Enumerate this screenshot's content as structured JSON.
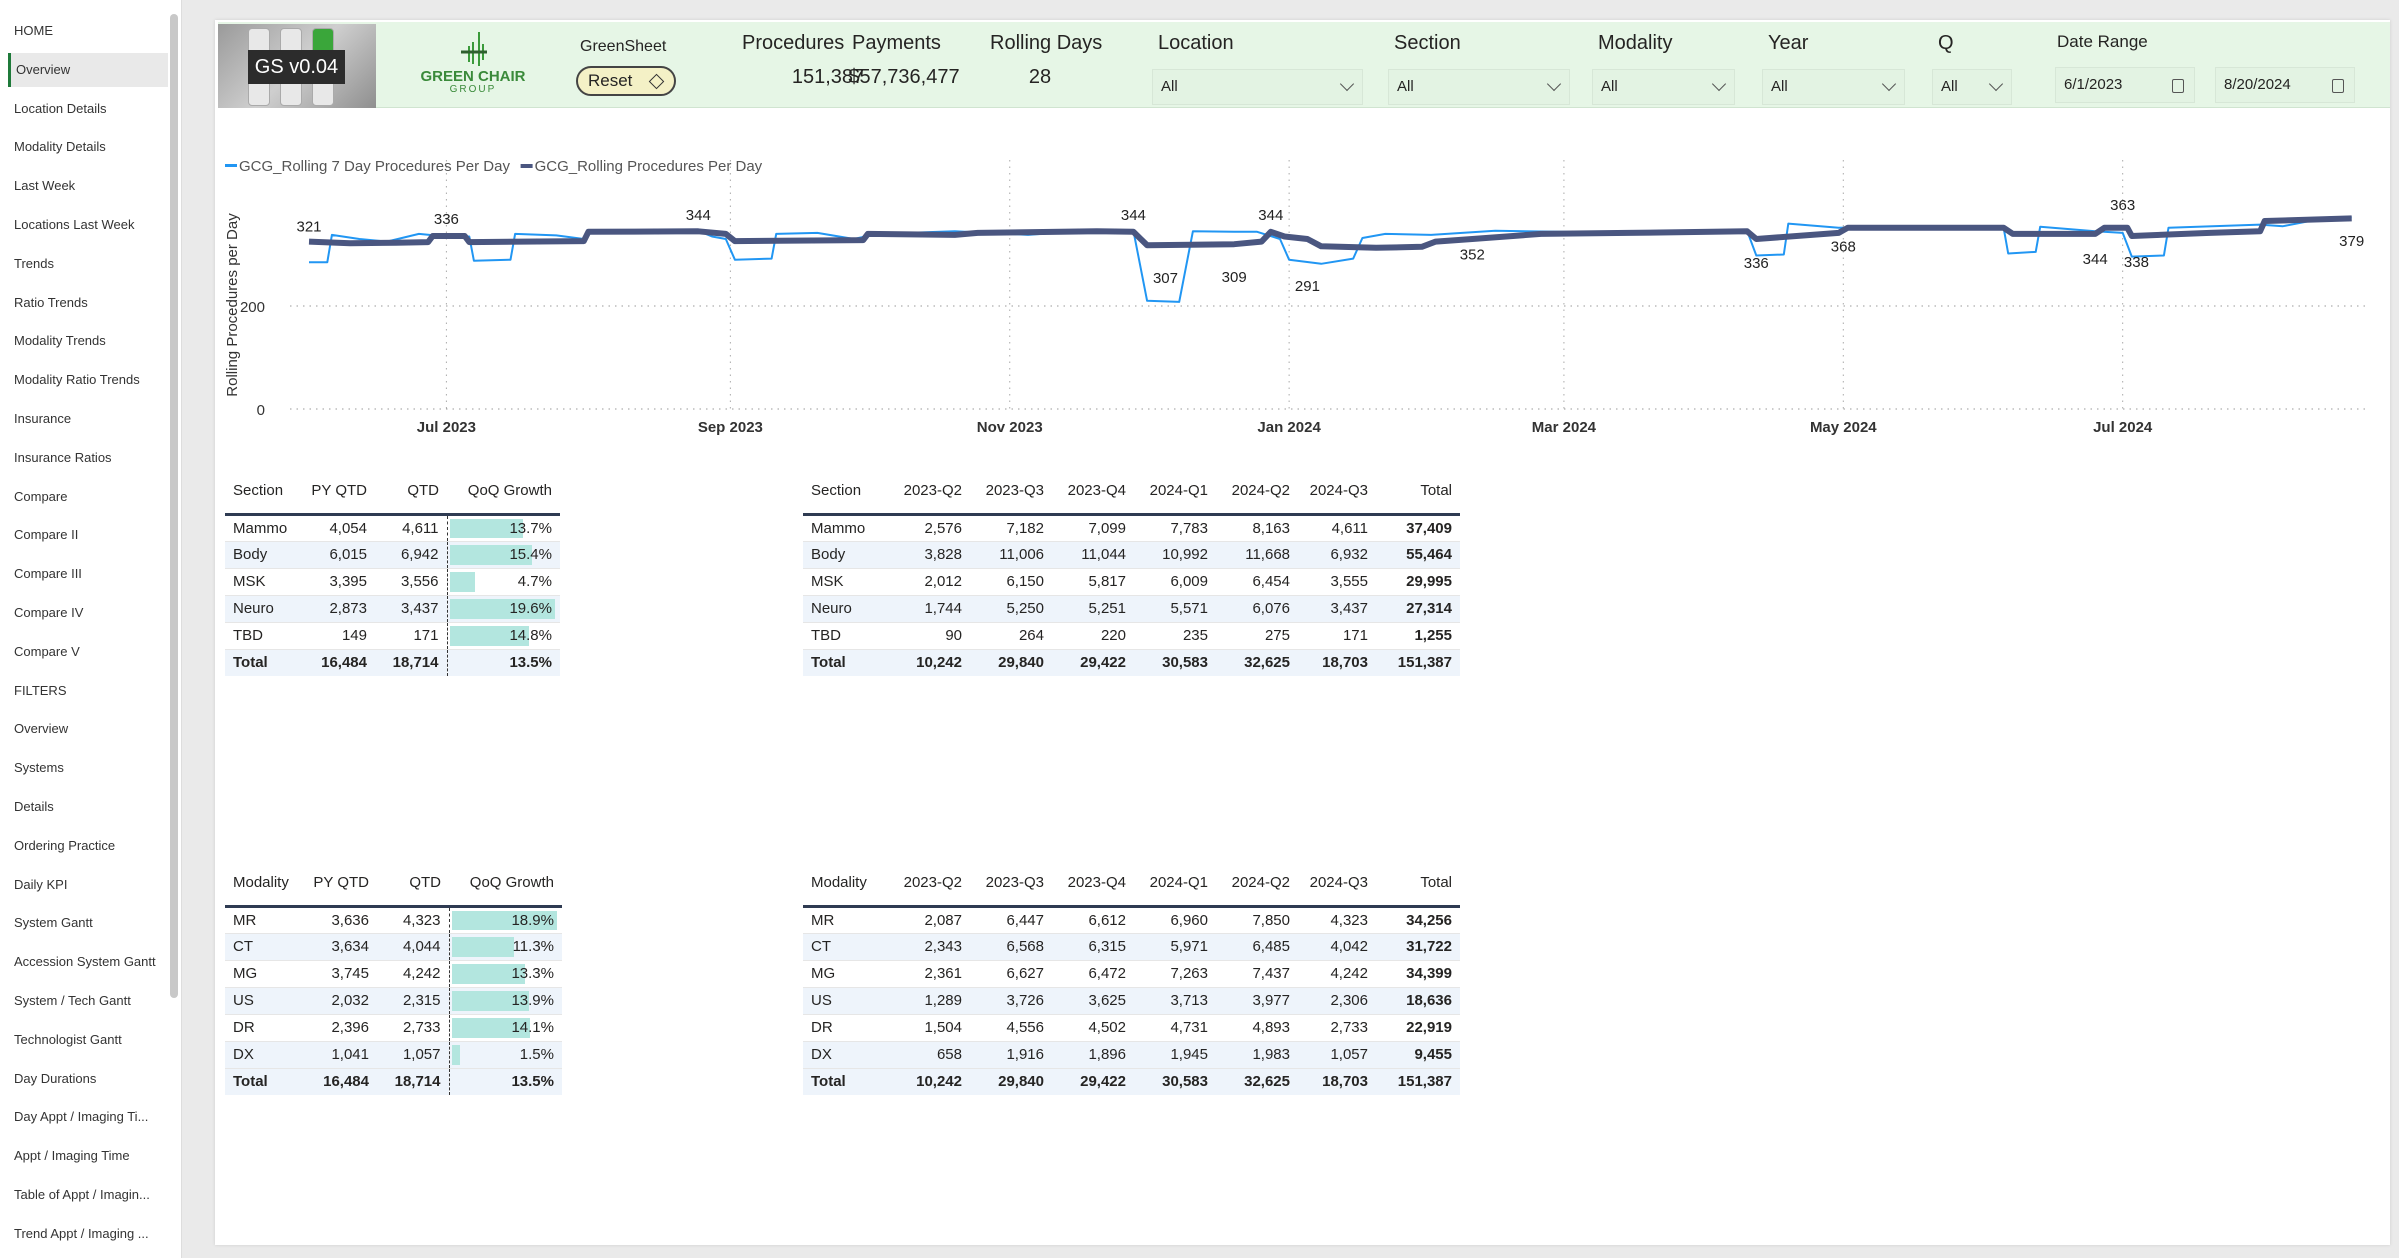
{
  "sidebar": {
    "items": [
      "HOME",
      "Overview",
      "Location Details",
      "Modality Details",
      "Last Week",
      "Locations Last Week",
      "Trends",
      "Ratio Trends",
      "Modality Trends",
      "Modality Ratio Trends",
      "Insurance",
      "Insurance Ratios",
      "Compare",
      "Compare II",
      "Compare III",
      "Compare IV",
      "Compare V",
      "FILTERS",
      "Overview",
      "Systems",
      "Details",
      "Ordering Practice",
      "Daily KPI",
      "System Gantt",
      "Accession System Gantt",
      "System / Tech Gantt",
      "Technologist Gantt",
      "Day Durations",
      "Day Appt / Imaging Ti...",
      "Appt / Imaging Time",
      "Table of Appt / Imagin...",
      "Trend Appt / Imaging ..."
    ],
    "selected": 1
  },
  "header": {
    "version": "GS v0.04",
    "logo_text": "THE GREEN CHAIR GROUP",
    "app_name": "GreenSheet",
    "reset_label": "Reset",
    "kpis": [
      {
        "label": "Procedures",
        "value": "151,387"
      },
      {
        "label": "Payments",
        "value": "$57,736,477"
      },
      {
        "label": "Rolling Days",
        "value": "28"
      }
    ],
    "filters": [
      {
        "label": "Location",
        "value": "All"
      },
      {
        "label": "Section",
        "value": "All"
      },
      {
        "label": "Modality",
        "value": "All"
      },
      {
        "label": "Year",
        "value": "All"
      },
      {
        "label": "Q",
        "value": "All"
      }
    ],
    "date_range": {
      "label": "Date Range",
      "start": "6/1/2023",
      "end": "8/20/2024"
    }
  },
  "colors": {
    "header_bg": "#e6f6e6",
    "series_7day": "#2196f3",
    "series_rolling": "#4a5680",
    "qoq_bar": "#b3e6df"
  },
  "chart_data": {
    "type": "line",
    "ylabel": "Rolling Procedures per Day",
    "yticks": [
      0,
      200
    ],
    "ylim": [
      0,
      420
    ],
    "xlim": [
      "2023-06-01",
      "2024-08-20"
    ],
    "xticks": [
      [
        "2023-07-01",
        "Jul 2023"
      ],
      [
        "2023-09-01",
        "Sep 2023"
      ],
      [
        "2023-11-01",
        "Nov 2023"
      ],
      [
        "2024-01-01",
        "Jan 2024"
      ],
      [
        "2024-03-01",
        "Mar 2024"
      ],
      [
        "2024-05-01",
        "May 2024"
      ],
      [
        "2024-07-01",
        "Jul 2024"
      ]
    ],
    "grid": true,
    "legend": "top-left",
    "series": [
      {
        "name": "GCG_Rolling 7 Day Procedures Per Day",
        "color": "#2196f3",
        "points": [
          [
            "2023-06-01",
            285
          ],
          [
            "2023-06-05",
            285
          ],
          [
            "2023-06-06",
            338
          ],
          [
            "2023-06-12",
            330
          ],
          [
            "2023-06-18",
            325
          ],
          [
            "2023-06-25",
            340
          ],
          [
            "2023-07-01",
            335
          ],
          [
            "2023-07-06",
            335
          ],
          [
            "2023-07-07",
            288
          ],
          [
            "2023-07-15",
            290
          ],
          [
            "2023-07-16",
            340
          ],
          [
            "2023-07-25",
            337
          ],
          [
            "2023-07-31",
            330
          ],
          [
            "2023-08-02",
            346
          ],
          [
            "2023-08-25",
            346
          ],
          [
            "2023-08-28",
            335
          ],
          [
            "2023-08-31",
            330
          ],
          [
            "2023-09-02",
            290
          ],
          [
            "2023-09-10",
            292
          ],
          [
            "2023-09-11",
            340
          ],
          [
            "2023-09-20",
            342
          ],
          [
            "2023-09-28",
            330
          ],
          [
            "2023-10-03",
            340
          ],
          [
            "2023-10-20",
            345
          ],
          [
            "2023-11-05",
            338
          ],
          [
            "2023-11-20",
            348
          ],
          [
            "2023-11-28",
            346
          ],
          [
            "2023-12-01",
            210
          ],
          [
            "2023-12-08",
            208
          ],
          [
            "2023-12-11",
            345
          ],
          [
            "2023-12-20",
            344
          ],
          [
            "2023-12-25",
            344
          ],
          [
            "2023-12-30",
            330
          ],
          [
            "2024-01-01",
            290
          ],
          [
            "2024-01-08",
            282
          ],
          [
            "2024-01-15",
            292
          ],
          [
            "2024-01-17",
            332
          ],
          [
            "2024-01-22",
            340
          ],
          [
            "2024-02-01",
            338
          ],
          [
            "2024-02-15",
            346
          ],
          [
            "2024-03-10",
            343
          ],
          [
            "2024-03-25",
            346
          ],
          [
            "2024-04-10",
            346
          ],
          [
            "2024-04-12",
            298
          ],
          [
            "2024-04-18",
            300
          ],
          [
            "2024-04-19",
            360
          ],
          [
            "2024-04-30",
            352
          ],
          [
            "2024-05-15",
            355
          ],
          [
            "2024-06-05",
            352
          ],
          [
            "2024-06-06",
            302
          ],
          [
            "2024-06-12",
            305
          ],
          [
            "2024-06-13",
            354
          ],
          [
            "2024-06-25",
            345
          ],
          [
            "2024-07-01",
            342
          ],
          [
            "2024-07-03",
            296
          ],
          [
            "2024-07-10",
            298
          ],
          [
            "2024-07-11",
            352
          ],
          [
            "2024-07-31",
            358
          ],
          [
            "2024-08-05",
            355
          ],
          [
            "2024-08-15",
            372
          ],
          [
            "2024-08-20",
            372
          ]
        ]
      },
      {
        "name": "GCG_Rolling Procedures Per Day",
        "color": "#4a5680",
        "points": [
          [
            "2023-06-01",
            325
          ],
          [
            "2023-06-10",
            322
          ],
          [
            "2023-06-20",
            323
          ],
          [
            "2023-06-27",
            324
          ],
          [
            "2023-06-28",
            336
          ],
          [
            "2023-07-05",
            336
          ],
          [
            "2023-07-06",
            324
          ],
          [
            "2023-07-31",
            326
          ],
          [
            "2023-08-01",
            344
          ],
          [
            "2023-08-25",
            345
          ],
          [
            "2023-08-31",
            340
          ],
          [
            "2023-09-02",
            326
          ],
          [
            "2023-09-30",
            328
          ],
          [
            "2023-10-01",
            340
          ],
          [
            "2023-10-20",
            338
          ],
          [
            "2023-10-25",
            342
          ],
          [
            "2023-11-20",
            345
          ],
          [
            "2023-11-28",
            344
          ],
          [
            "2023-12-01",
            318
          ],
          [
            "2023-12-20",
            320
          ],
          [
            "2023-12-26",
            325
          ],
          [
            "2023-12-28",
            344
          ],
          [
            "2023-12-31",
            335
          ],
          [
            "2024-01-05",
            330
          ],
          [
            "2024-01-08",
            316
          ],
          [
            "2024-01-20",
            313
          ],
          [
            "2024-01-30",
            315
          ],
          [
            "2024-02-02",
            325
          ],
          [
            "2024-02-10",
            330
          ],
          [
            "2024-02-25",
            340
          ],
          [
            "2024-03-15",
            342
          ],
          [
            "2024-04-10",
            345
          ],
          [
            "2024-04-12",
            330
          ],
          [
            "2024-04-30",
            342
          ],
          [
            "2024-05-02",
            352
          ],
          [
            "2024-06-05",
            352
          ],
          [
            "2024-06-07",
            340
          ],
          [
            "2024-06-25",
            340
          ],
          [
            "2024-06-27",
            352
          ],
          [
            "2024-07-02",
            352
          ],
          [
            "2024-07-03",
            336
          ],
          [
            "2024-07-20",
            342
          ],
          [
            "2024-07-31",
            345
          ],
          [
            "2024-08-01",
            365
          ],
          [
            "2024-08-20",
            370
          ]
        ]
      }
    ],
    "data_labels": [
      [
        "2023-06-01",
        "321",
        "above"
      ],
      [
        "2023-07-01",
        "336",
        "above"
      ],
      [
        "2023-08-25",
        "344",
        "above"
      ],
      [
        "2023-11-28",
        "344",
        "above"
      ],
      [
        "2023-12-05",
        "307",
        "below"
      ],
      [
        "2023-12-20",
        "309",
        "below"
      ],
      [
        "2023-12-28",
        "344",
        "above"
      ],
      [
        "2024-01-05",
        "291",
        "below"
      ],
      [
        "2024-02-10",
        "352",
        "below"
      ],
      [
        "2024-04-12",
        "336",
        "below"
      ],
      [
        "2024-05-01",
        "368",
        "below"
      ],
      [
        "2024-06-25",
        "344",
        "below"
      ],
      [
        "2024-07-01",
        "363",
        "above"
      ],
      [
        "2024-07-04",
        "338",
        "below"
      ],
      [
        "2024-08-20",
        "379",
        "below"
      ]
    ]
  },
  "tables": [
    {
      "columns": [
        "Section",
        "PY QTD",
        "QTD",
        "QoQ Growth"
      ],
      "rows": [
        [
          "Mammo",
          "4,054",
          "4,611",
          "13.7%"
        ],
        [
          "Body",
          "6,015",
          "6,942",
          "15.4%"
        ],
        [
          "MSK",
          "3,395",
          "3,556",
          "4.7%"
        ],
        [
          "Neuro",
          "2,873",
          "3,437",
          "19.6%"
        ],
        [
          "TBD",
          "149",
          "171",
          "14.8%"
        ]
      ],
      "total": [
        "Total",
        "16,484",
        "18,714",
        "13.5%"
      ]
    },
    {
      "columns": [
        "Section",
        "2023-Q2",
        "2023-Q3",
        "2023-Q4",
        "2024-Q1",
        "2024-Q2",
        "2024-Q3",
        "Total"
      ],
      "rows": [
        [
          "Mammo",
          "2,576",
          "7,182",
          "7,099",
          "7,783",
          "8,163",
          "4,611",
          "37,409"
        ],
        [
          "Body",
          "3,828",
          "11,006",
          "11,044",
          "10,992",
          "11,668",
          "6,932",
          "55,464"
        ],
        [
          "MSK",
          "2,012",
          "6,150",
          "5,817",
          "6,009",
          "6,454",
          "3,555",
          "29,995"
        ],
        [
          "Neuro",
          "1,744",
          "5,250",
          "5,251",
          "5,571",
          "6,076",
          "3,437",
          "27,314"
        ],
        [
          "TBD",
          "90",
          "264",
          "220",
          "235",
          "275",
          "171",
          "1,255"
        ]
      ],
      "total": [
        "Total",
        "10,242",
        "29,840",
        "29,422",
        "30,583",
        "32,625",
        "18,703",
        "151,387"
      ]
    },
    {
      "columns": [
        "Modality",
        "PY QTD",
        "QTD",
        "QoQ Growth"
      ],
      "rows": [
        [
          "MR",
          "3,636",
          "4,323",
          "18.9%"
        ],
        [
          "CT",
          "3,634",
          "4,044",
          "11.3%"
        ],
        [
          "MG",
          "3,745",
          "4,242",
          "13.3%"
        ],
        [
          "US",
          "2,032",
          "2,315",
          "13.9%"
        ],
        [
          "DR",
          "2,396",
          "2,733",
          "14.1%"
        ],
        [
          "DX",
          "1,041",
          "1,057",
          "1.5%"
        ]
      ],
      "total": [
        "Total",
        "16,484",
        "18,714",
        "13.5%"
      ]
    },
    {
      "columns": [
        "Modality",
        "2023-Q2",
        "2023-Q3",
        "2023-Q4",
        "2024-Q1",
        "2024-Q2",
        "2024-Q3",
        "Total"
      ],
      "rows": [
        [
          "MR",
          "2,087",
          "6,447",
          "6,612",
          "6,960",
          "7,850",
          "4,323",
          "34,256"
        ],
        [
          "CT",
          "2,343",
          "6,568",
          "6,315",
          "5,971",
          "6,485",
          "4,042",
          "31,722"
        ],
        [
          "MG",
          "2,361",
          "6,627",
          "6,472",
          "7,263",
          "7,437",
          "4,242",
          "34,399"
        ],
        [
          "US",
          "1,289",
          "3,726",
          "3,625",
          "3,713",
          "3,977",
          "2,306",
          "18,636"
        ],
        [
          "DR",
          "1,504",
          "4,556",
          "4,502",
          "4,731",
          "4,893",
          "2,733",
          "22,919"
        ],
        [
          "DX",
          "658",
          "1,916",
          "1,896",
          "1,945",
          "1,983",
          "1,057",
          "9,455"
        ]
      ],
      "total": [
        "Total",
        "10,242",
        "29,840",
        "29,422",
        "30,583",
        "32,625",
        "18,703",
        "151,387"
      ]
    }
  ]
}
